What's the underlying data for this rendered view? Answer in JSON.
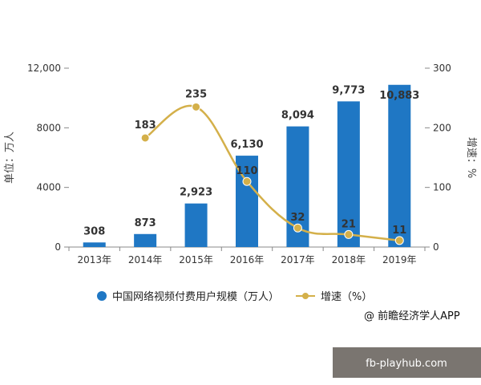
{
  "chart_data": {
    "type": "bar",
    "categories": [
      "2013年",
      "2014年",
      "2015年",
      "2016年",
      "2017年",
      "2018年",
      "2019年"
    ],
    "series": [
      {
        "name": "中国网络视频付费用户规模（万人）",
        "type": "bar",
        "axis": "left",
        "values": [
          308,
          873,
          2923,
          6130,
          8094,
          9773,
          10883
        ],
        "labels": [
          "308",
          "873",
          "2,923",
          "6,130",
          "8,094",
          "9,773",
          "10,883"
        ],
        "color": "#1f77c4"
      },
      {
        "name": "增速（%）",
        "type": "line",
        "axis": "right",
        "values": [
          null,
          183,
          235,
          110,
          32,
          21,
          11
        ],
        "labels": [
          "",
          "183",
          "235",
          "110",
          "32",
          "21",
          "11"
        ],
        "color": "#d4b04a"
      }
    ],
    "ylabel": "单位：万人",
    "y2label": "增速：%",
    "ylim": [
      0,
      12000
    ],
    "y2lim": [
      0,
      300
    ],
    "yticks": [
      0,
      4000,
      8000,
      12000
    ],
    "ytick_labels": [
      "0",
      "4000",
      "8000",
      "12,000"
    ],
    "y2ticks": [
      0,
      100,
      200,
      300
    ],
    "y2tick_labels": [
      "0",
      "100",
      "200",
      "300"
    ],
    "legend_placement": "bottom",
    "grid": false
  },
  "credit": "@ 前瞻经济学人APP",
  "watermark_text": "fb-playhub.com"
}
